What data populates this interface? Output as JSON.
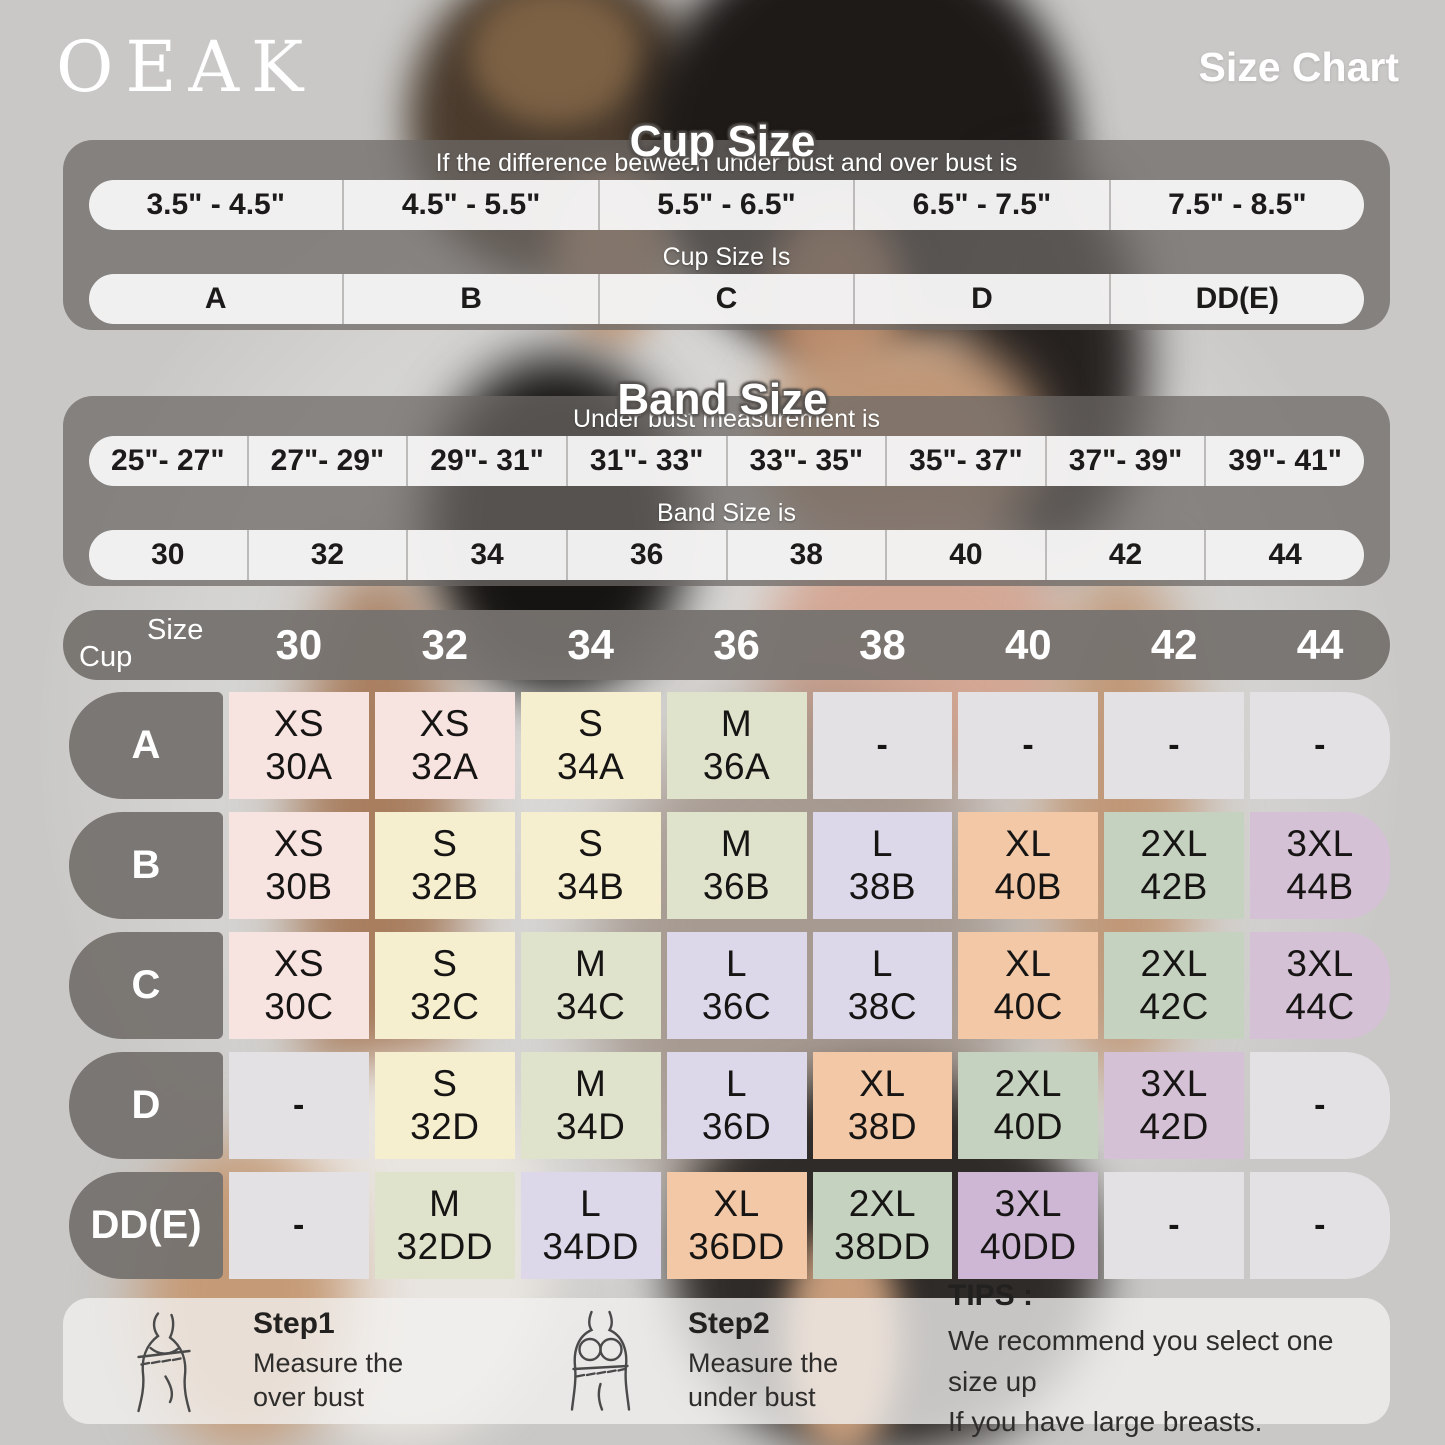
{
  "brand": "OEAK",
  "page_title": "Size Chart",
  "cup_section": {
    "title": "Cup Size",
    "subtitle": "If the  difference between under bust and over bust is",
    "ranges": [
      "3.5\" - 4.5\"",
      "4.5\" - 5.5\"",
      "5.5\" - 6.5\"",
      "6.5\" - 7.5\"",
      "7.5\" - 8.5\""
    ],
    "cup_label": "Cup Size Is",
    "cups": [
      "A",
      "B",
      "C",
      "D",
      "DD(E)"
    ]
  },
  "band_section": {
    "title": "Band Size",
    "subtitle": "Under bust measurement is",
    "ranges": [
      "25\"- 27\"",
      "27\"- 29\"",
      "29\"- 31\"",
      "31\"- 33\"",
      "33\"- 35\"",
      "35\"- 37\"",
      "37\"- 39\"",
      "39\"- 41\""
    ],
    "band_label": "Band Size is",
    "bands": [
      "30",
      "32",
      "34",
      "36",
      "38",
      "40",
      "42",
      "44"
    ]
  },
  "matrix": {
    "corner_top": "Size",
    "corner_bottom": "Cup",
    "columns": [
      "30",
      "32",
      "34",
      "36",
      "38",
      "40",
      "42",
      "44"
    ],
    "rows": [
      {
        "label": "A",
        "cells": [
          {
            "size": "XS",
            "code": "30A",
            "color": "pink"
          },
          {
            "size": "XS",
            "code": "32A",
            "color": "pink"
          },
          {
            "size": "S",
            "code": "34A",
            "color": "cream"
          },
          {
            "size": "M",
            "code": "36A",
            "color": "green"
          },
          {
            "size": "-",
            "code": "",
            "color": "empty"
          },
          {
            "size": "-",
            "code": "",
            "color": "empty"
          },
          {
            "size": "-",
            "code": "",
            "color": "empty"
          },
          {
            "size": "-",
            "code": "",
            "color": "empty"
          }
        ]
      },
      {
        "label": "B",
        "cells": [
          {
            "size": "XS",
            "code": "30B",
            "color": "pink"
          },
          {
            "size": "S",
            "code": "32B",
            "color": "cream"
          },
          {
            "size": "S",
            "code": "34B",
            "color": "cream"
          },
          {
            "size": "M",
            "code": "36B",
            "color": "green"
          },
          {
            "size": "L",
            "code": "38B",
            "color": "lavender"
          },
          {
            "size": "XL",
            "code": "40B",
            "color": "peach"
          },
          {
            "size": "2XL",
            "code": "42B",
            "color": "sage"
          },
          {
            "size": "3XL",
            "code": "44B",
            "color": "mauve"
          }
        ]
      },
      {
        "label": "C",
        "cells": [
          {
            "size": "XS",
            "code": "30C",
            "color": "pink"
          },
          {
            "size": "S",
            "code": "32C",
            "color": "cream"
          },
          {
            "size": "M",
            "code": "34C",
            "color": "green"
          },
          {
            "size": "L",
            "code": "36C",
            "color": "lavender"
          },
          {
            "size": "L",
            "code": "38C",
            "color": "lavender"
          },
          {
            "size": "XL",
            "code": "40C",
            "color": "peach"
          },
          {
            "size": "2XL",
            "code": "42C",
            "color": "sage"
          },
          {
            "size": "3XL",
            "code": "44C",
            "color": "mauve"
          }
        ]
      },
      {
        "label": "D",
        "cells": [
          {
            "size": "-",
            "code": "",
            "color": "empty"
          },
          {
            "size": "S",
            "code": "32D",
            "color": "cream"
          },
          {
            "size": "M",
            "code": "34D",
            "color": "green"
          },
          {
            "size": "L",
            "code": "36D",
            "color": "lavender"
          },
          {
            "size": "XL",
            "code": "38D",
            "color": "peach"
          },
          {
            "size": "2XL",
            "code": "40D",
            "color": "sage"
          },
          {
            "size": "3XL",
            "code": "42D",
            "color": "mauve"
          },
          {
            "size": "-",
            "code": "",
            "color": "empty"
          }
        ]
      },
      {
        "label": "DD(E)",
        "cells": [
          {
            "size": "-",
            "code": "",
            "color": "empty"
          },
          {
            "size": "M",
            "code": "32DD",
            "color": "green"
          },
          {
            "size": "L",
            "code": "34DD",
            "color": "lavender"
          },
          {
            "size": "XL",
            "code": "36DD",
            "color": "peach"
          },
          {
            "size": "2XL",
            "code": "38DD",
            "color": "sage"
          },
          {
            "size": "3XL",
            "code": "40DD",
            "color": "purple"
          },
          {
            "size": "-",
            "code": "",
            "color": "empty"
          },
          {
            "size": "-",
            "code": "",
            "color": "empty"
          }
        ]
      }
    ]
  },
  "colors": {
    "pink": "#f7e3df",
    "cream": "#f6efcf",
    "green": "#dfe3cc",
    "lavender": "#dcd8e9",
    "peach": "#f2c8a7",
    "sage": "#c6d2c0",
    "mauve": "#d5c1d5",
    "purple": "#cdb7d4",
    "empty": "#e3e1e3"
  },
  "footer": {
    "step1_title": "Step1",
    "step1_line1": "Measure the",
    "step1_line2": "over bust",
    "step2_title": "Step2",
    "step2_line1": "Measure the",
    "step2_line2": "under bust",
    "tips_title": "TIPS :",
    "tips_line1": "We recommend you select one size up",
    "tips_line2": "If you have large breasts."
  }
}
